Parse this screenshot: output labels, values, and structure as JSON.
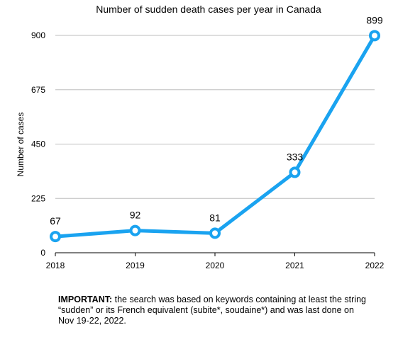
{
  "chart_data": {
    "type": "line",
    "title": "Number of sudden death cases per year in Canada",
    "xlabel": "",
    "ylabel": "Number of cases",
    "categories": [
      "2018",
      "2019",
      "2020",
      "2021",
      "2022"
    ],
    "series": [
      {
        "values": [
          67,
          92,
          81,
          333,
          899
        ],
        "color": "#1aa3f0"
      }
    ],
    "ylim": [
      0,
      900
    ],
    "yticks": [
      0,
      225,
      450,
      675,
      900
    ],
    "grid": true,
    "data_labels": true
  },
  "note": {
    "bold": "IMPORTANT:",
    "text": " the search was based on keywords containing at least the string “sudden” or its French equivalent (subite*, soudaine*) and was last done on Nov 19-22, 2022."
  }
}
